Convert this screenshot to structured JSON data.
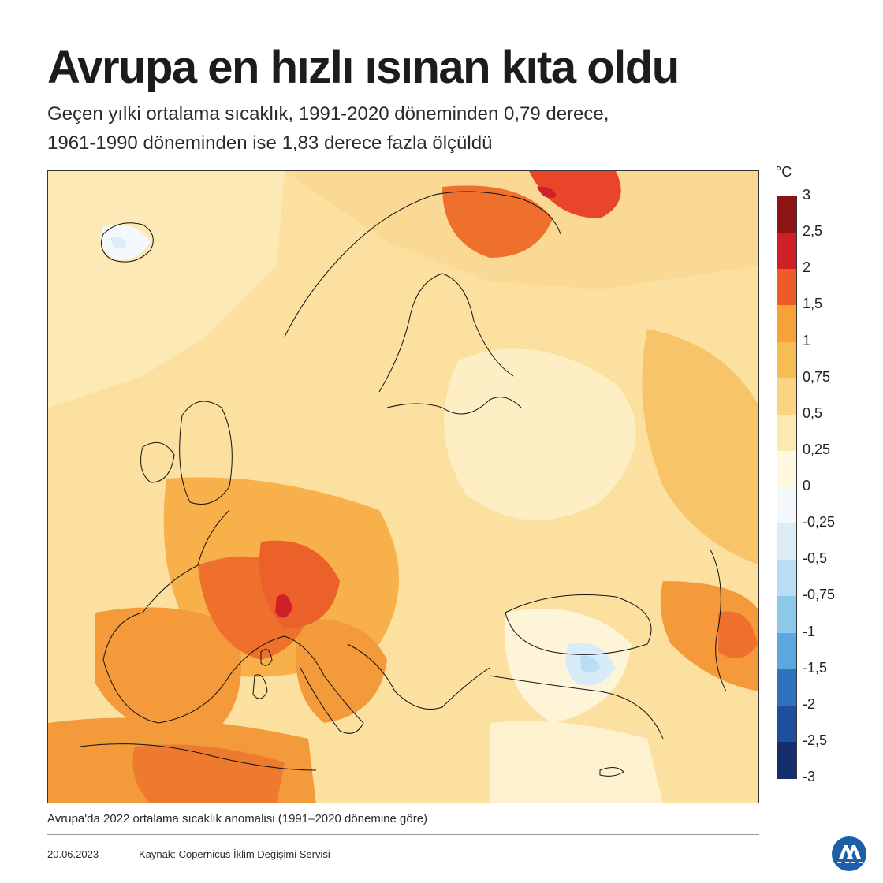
{
  "title": "Avrupa en hızlı ısınan kıta oldu",
  "subtitle": {
    "line1": "Geçen yılki ortalama sıcaklık, 1991-2020 döneminden 0,79 derece,",
    "line2": "1961-1990 döneminden ise 1,83 derece fazla ölçüldü"
  },
  "legend": {
    "unit": "°C",
    "ticks": [
      "3",
      "2,5",
      "2",
      "1,5",
      "1",
      "0,75",
      "0,5",
      "0,25",
      "0",
      "-0,25",
      "-0,5",
      "-0,75",
      "-1",
      "-1,5",
      "-2",
      "-2,5",
      "-3"
    ],
    "colors": [
      "#8c1414",
      "#cf2027",
      "#ef5a29",
      "#f5a236",
      "#f7bd55",
      "#fad482",
      "#fce9b1",
      "#fef8e1",
      "#f3f8fc",
      "#dcedf8",
      "#b9def3",
      "#8ec9ec",
      "#5ca7dd",
      "#2f72bd",
      "#1f4f9c",
      "#152d6b"
    ]
  },
  "caption": "Avrupa'da 2022 ortalama sıcaklık anomalisi (1991–2020 dönemine göre)",
  "footer": {
    "date": "20.06.2023",
    "source": "Kaynak: Copernicus İklim Değişimi Servisi"
  },
  "logo": {
    "name": "aa-logo",
    "color": "#1d5fa8"
  }
}
